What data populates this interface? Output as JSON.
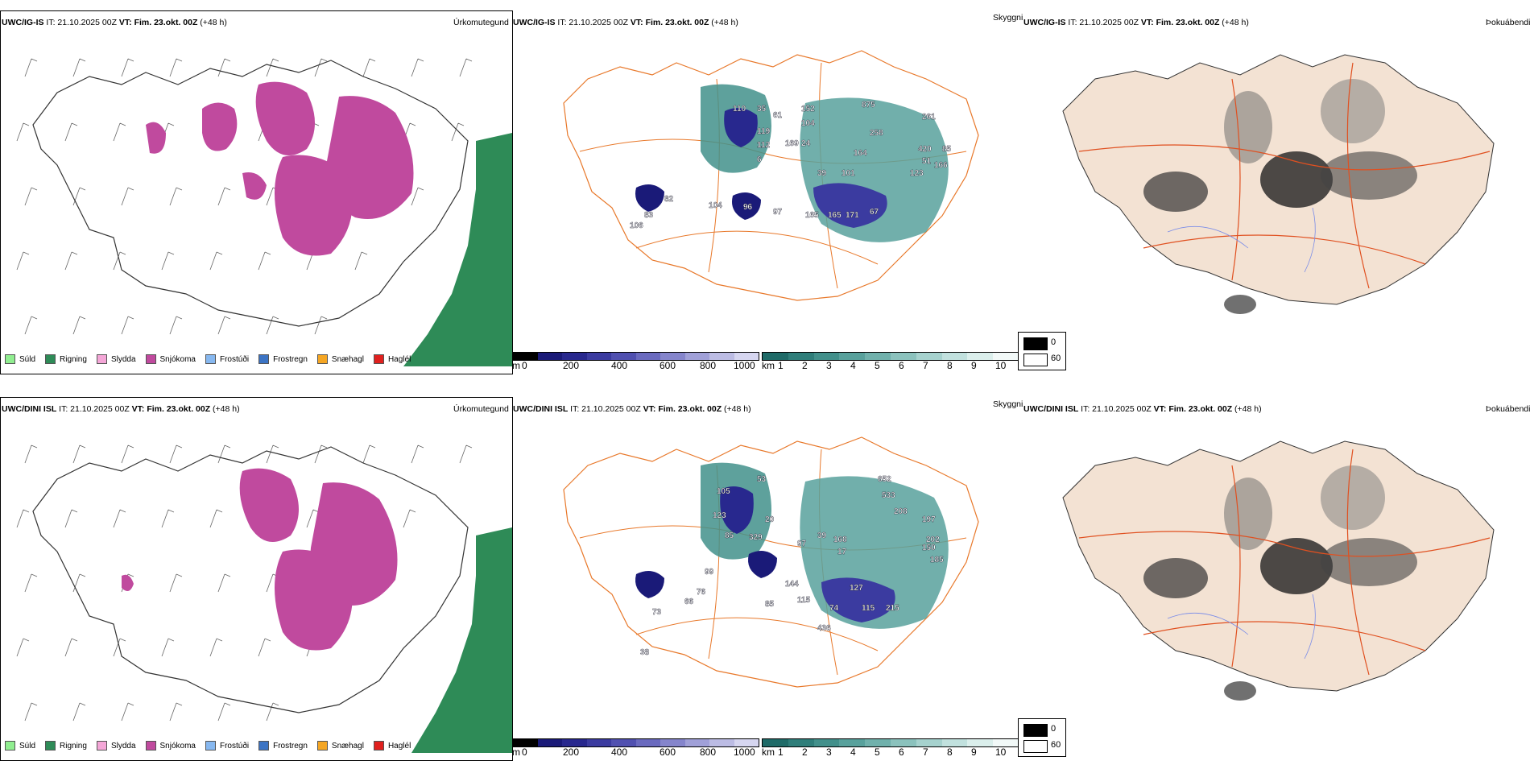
{
  "rows": [
    {
      "model": "UWC/IG-IS",
      "it": "IT: 21.10.2025 00Z",
      "vt_label": "VT:",
      "vt": "Fim. 23.okt. 00Z",
      "lead": "(+48 h)",
      "ceiling_labels": [
        "110",
        "35",
        "152",
        "104",
        "119",
        "112",
        "6",
        "169",
        "24",
        "875",
        "258",
        "261",
        "420",
        "85",
        "51",
        "166",
        "164",
        "101",
        "123",
        "39",
        "61",
        "82",
        "104",
        "96",
        "97",
        "165",
        "165",
        "171",
        "67",
        "83",
        "106"
      ]
    },
    {
      "model": "UWC/DINI ISL",
      "it": "IT: 21.10.2025 00Z",
      "vt_label": "VT:",
      "vt": "Fim. 23.okt. 00Z",
      "lead": "(+48 h)",
      "ceiling_labels": [
        "105",
        "53",
        "123",
        "85",
        "329",
        "20",
        "39",
        "168",
        "17",
        "652",
        "533",
        "208",
        "197",
        "202",
        "150",
        "185",
        "97",
        "99",
        "76",
        "66",
        "144",
        "85",
        "115",
        "74",
        "115",
        "127",
        "215",
        "436",
        "73",
        "38"
      ]
    }
  ],
  "panels": {
    "precip_title": "Úrkomutegund",
    "ceiling_title": "Skyggni",
    "fog_title": "Þokuábendi"
  },
  "precip_legend": [
    {
      "label": "Súld",
      "color": "#90ee90"
    },
    {
      "label": "Rigning",
      "color": "#2e8b57"
    },
    {
      "label": "Slydda",
      "color": "#f4a6d7"
    },
    {
      "label": "Snjókoma",
      "color": "#c04a9e"
    },
    {
      "label": "Frostúði",
      "color": "#87b8f0"
    },
    {
      "label": "Frostregn",
      "color": "#3c74c4"
    },
    {
      "label": "Snæhagl",
      "color": "#f5a623"
    },
    {
      "label": "Haglél",
      "color": "#e0201e"
    }
  ],
  "cbar_m": {
    "unit": "m",
    "ticks": [
      "0",
      "200",
      "400",
      "600",
      "800",
      "1000"
    ],
    "colors": [
      "#000000",
      "#1a1a78",
      "#28288e",
      "#3b3ba0",
      "#5050b0",
      "#6a6abf",
      "#8585cc",
      "#a0a0d8",
      "#bcbce4",
      "#d6d6f0"
    ]
  },
  "cbar_km": {
    "unit": "km",
    "ticks": [
      "1",
      "2",
      "3",
      "4",
      "5",
      "6",
      "7",
      "8",
      "9",
      "10"
    ],
    "colors": [
      "#1f6b68",
      "#2f7e7a",
      "#42908b",
      "#58a19c",
      "#70b1ac",
      "#8bc2bd",
      "#a6d2ce",
      "#c1e1de",
      "#dbefec",
      "#f2f9f8"
    ]
  },
  "fog_legend": [
    {
      "value": "0",
      "color": "#000000"
    },
    {
      "value": "60",
      "color": "#ffffff"
    }
  ],
  "colors": {
    "snow": "#c04a9e",
    "rain": "#2e8b57",
    "road": "#e8782a",
    "land": "#f3e2d3",
    "river": "#7a8ce8"
  }
}
